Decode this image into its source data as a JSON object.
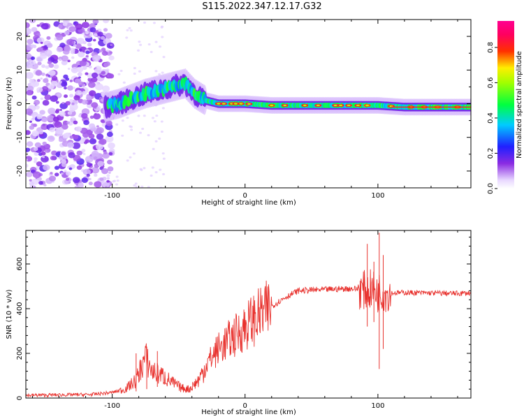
{
  "title": "S115.2022.347.12.17.G32",
  "chart_data": [
    {
      "type": "heatmap",
      "xlabel": "Height of straight line (km)",
      "ylabel": "Frequency (Hz)",
      "xlim": [
        -165,
        170
      ],
      "ylim": [
        -25,
        25
      ],
      "xticks": [
        -100,
        0,
        100
      ],
      "yticks": [
        -20,
        -10,
        0,
        10,
        20
      ],
      "grid": false,
      "colorbar": {
        "label": "Normalized spectral amplitude",
        "range": [
          0,
          0.95
        ],
        "ticks": [
          0.0,
          0.2,
          0.4,
          0.6,
          0.8
        ],
        "colormap": "purple-blue-cyan-green-yellow-red-magenta"
      },
      "ridge_frequency": {
        "x": [
          -105,
          -95,
          -85,
          -75,
          -65,
          -55,
          -45,
          -38,
          -30,
          -20,
          -10,
          0,
          20,
          40,
          60,
          80,
          100,
          120,
          140,
          170
        ],
        "y": [
          -1,
          0,
          1.5,
          3,
          4,
          5,
          6,
          3,
          1,
          0,
          0,
          0,
          -0.5,
          -0.5,
          -0.5,
          -0.5,
          -0.5,
          -1,
          -1,
          -1
        ]
      }
    },
    {
      "type": "line",
      "xlabel": "Height of straight line (km)",
      "ylabel": "SNR (10 * v/v)",
      "xlim": [
        -165,
        170
      ],
      "ylim": [
        0,
        750
      ],
      "xticks": [
        -100,
        0,
        100
      ],
      "yticks": [
        0,
        200,
        400,
        600
      ],
      "grid": false,
      "series": [
        {
          "color": "#e8322e",
          "x": [
            -165,
            -140,
            -115,
            -100,
            -90,
            -82,
            -78,
            -75,
            -70,
            -62,
            -55,
            -48,
            -42,
            -35,
            -28,
            -20,
            -12,
            -5,
            0,
            5,
            10,
            15,
            20,
            30,
            40,
            50,
            60,
            70,
            80,
            88,
            92,
            96,
            100,
            102,
            104,
            108,
            120,
            140,
            160,
            170
          ],
          "y": [
            12,
            14,
            16,
            25,
            40,
            80,
            140,
            180,
            120,
            100,
            70,
            45,
            40,
            80,
            160,
            220,
            260,
            290,
            320,
            345,
            365,
            385,
            410,
            450,
            480,
            483,
            485,
            488,
            490,
            485,
            480,
            490,
            470,
            480,
            475,
            470,
            472,
            470,
            468,
            470
          ]
        }
      ],
      "spikes": [
        {
          "x": -82,
          "min": 30,
          "max": 200
        },
        {
          "x": -74,
          "min": 40,
          "max": 230
        },
        {
          "x": -66,
          "min": 50,
          "max": 210
        },
        {
          "x": 92,
          "min": 320,
          "max": 690
        },
        {
          "x": 97,
          "min": 340,
          "max": 610
        },
        {
          "x": 101,
          "min": 130,
          "max": 740
        },
        {
          "x": 104,
          "min": 220,
          "max": 640
        }
      ]
    }
  ]
}
